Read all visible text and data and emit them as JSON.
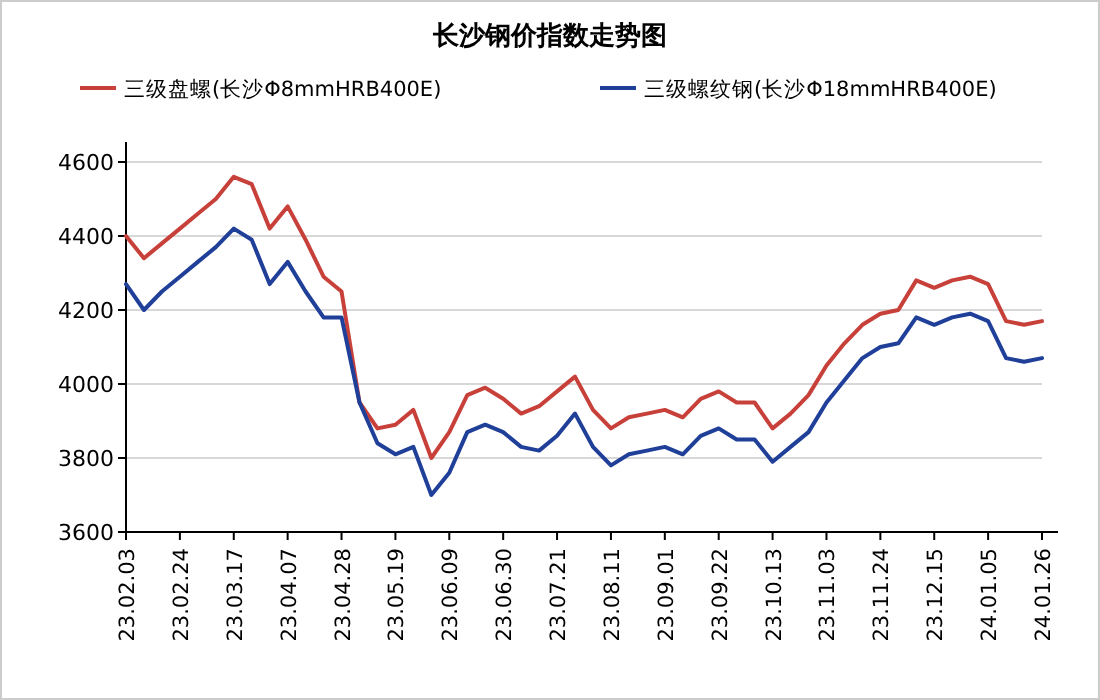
{
  "chart_data": {
    "type": "line",
    "title": "长沙钢价指数走势图",
    "categories": [
      "23.02.03",
      null,
      null,
      "23.02.24",
      null,
      null,
      "23.03.17",
      null,
      null,
      "23.04.07",
      null,
      null,
      "23.04.28",
      null,
      null,
      "23.05.19",
      null,
      null,
      "23.06.09",
      null,
      null,
      "23.06.30",
      null,
      null,
      "23.07.21",
      null,
      null,
      "23.08.11",
      null,
      null,
      "23.09.01",
      null,
      null,
      "23.09.22",
      null,
      null,
      "23.10.13",
      null,
      null,
      "23.11.03",
      null,
      null,
      "23.11.24",
      null,
      null,
      "23.12.15",
      null,
      null,
      "24.01.05",
      null,
      null,
      "24.01.26"
    ],
    "series": [
      {
        "name": "三级盘螺(长沙Φ8mmHRB400E)",
        "color": "#c8403a",
        "values": [
          4400,
          4340,
          4380,
          4420,
          4460,
          4500,
          4560,
          4540,
          4420,
          4480,
          4390,
          4290,
          4250,
          3950,
          3880,
          3890,
          3930,
          3800,
          3870,
          3970,
          3990,
          3960,
          3920,
          3940,
          3980,
          4020,
          3930,
          3880,
          3910,
          3920,
          3930,
          3910,
          3960,
          3980,
          3950,
          3950,
          3880,
          3920,
          3970,
          4050,
          4110,
          4160,
          4190,
          4200,
          4280,
          4260,
          4280,
          4290,
          4270,
          4170,
          4160,
          4170
        ]
      },
      {
        "name": "三级螺纹钢(长沙Φ18mmHRB400E)",
        "color": "#1f3f99",
        "values": [
          4270,
          4200,
          4250,
          4290,
          4330,
          4370,
          4420,
          4390,
          4270,
          4330,
          4250,
          4180,
          4180,
          3950,
          3840,
          3810,
          3830,
          3700,
          3760,
          3870,
          3890,
          3870,
          3830,
          3820,
          3860,
          3920,
          3830,
          3780,
          3810,
          3820,
          3830,
          3810,
          3860,
          3880,
          3850,
          3850,
          3790,
          3830,
          3870,
          3950,
          4010,
          4070,
          4100,
          4110,
          4180,
          4160,
          4180,
          4190,
          4170,
          4070,
          4060,
          4070
        ]
      }
    ],
    "ylim": [
      3600,
      4600
    ],
    "yticks": [
      3600,
      3800,
      4000,
      4200,
      4400,
      4600
    ],
    "grid": "y",
    "legend": "top",
    "marker": "none",
    "line_style": "solid"
  }
}
